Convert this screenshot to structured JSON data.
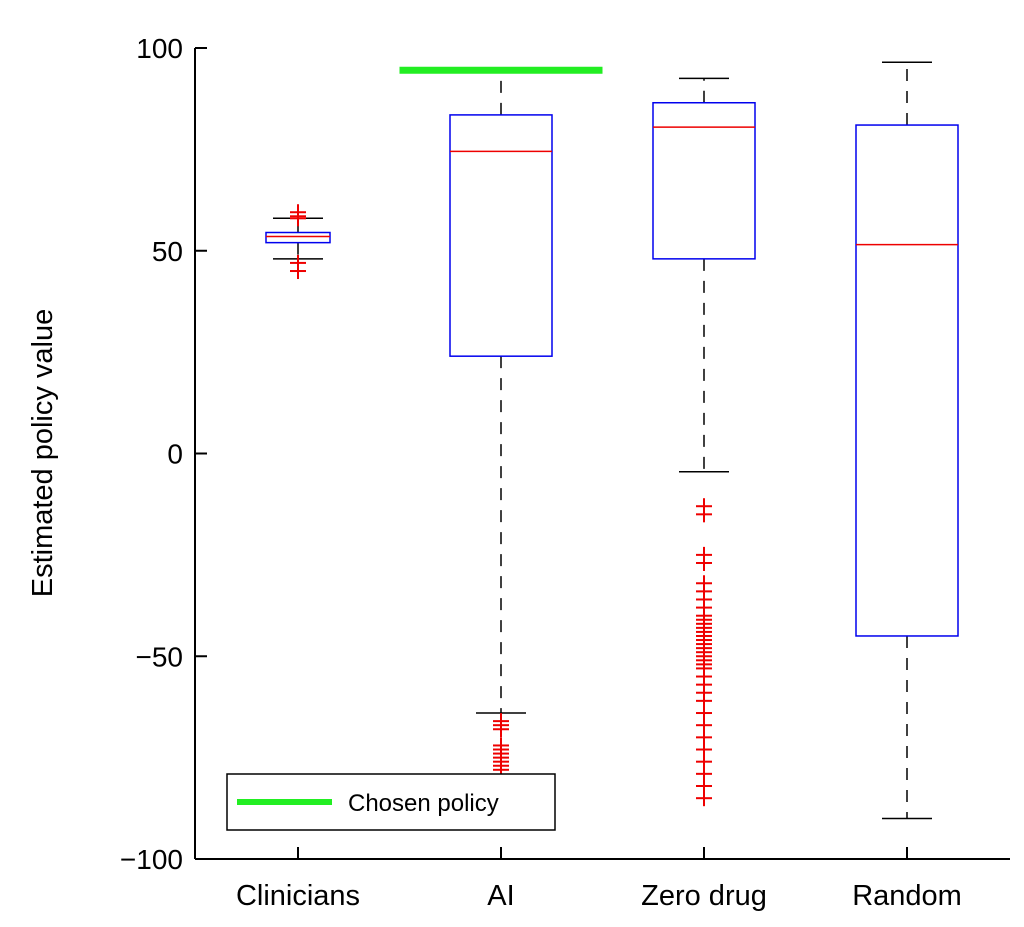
{
  "chart_data": {
    "type": "box",
    "ylabel": "Estimated policy value",
    "ylim": [
      -100,
      100
    ],
    "yticks": [
      {
        "value": 100,
        "label": "100"
      },
      {
        "value": 50,
        "label": "50"
      },
      {
        "value": 0,
        "label": "0"
      },
      {
        "value": -50,
        "label": "−50"
      },
      {
        "value": -100,
        "label": "−100"
      }
    ],
    "categories": [
      "Clinicians",
      "AI",
      "Zero drug",
      "Random"
    ],
    "boxes": [
      {
        "whisker_low": 48,
        "q1": 52,
        "median": 53.5,
        "q3": 54.5,
        "whisker_high": 58,
        "outliers": [
          59.5,
          58.5,
          58,
          47,
          45
        ]
      },
      {
        "whisker_low": -64,
        "q1": 24,
        "median": 74.5,
        "q3": 83.5,
        "whisker_high": 94,
        "outliers": [
          -66,
          -67,
          -68,
          -72,
          -73,
          -74,
          -75,
          -76,
          -77,
          -78
        ]
      },
      {
        "whisker_low": -4.5,
        "q1": 48,
        "median": 80.5,
        "q3": 86.5,
        "whisker_high": 92.5,
        "outliers": [
          -13,
          -15,
          -25,
          -27,
          -32,
          -34,
          -36,
          -38,
          -40,
          -41,
          -42,
          -43,
          -44,
          -45,
          -46,
          -47,
          -48,
          -49,
          -50,
          -51,
          -52,
          -53,
          -55,
          -57,
          -59,
          -61,
          -64,
          -67,
          -70,
          -73,
          -76,
          -79,
          -82,
          -85
        ]
      },
      {
        "whisker_low": -90,
        "q1": -45,
        "median": 51.5,
        "q3": 81,
        "whisker_high": 96.5,
        "outliers": []
      }
    ],
    "chosen_policy": {
      "value": 94.5,
      "category_start": 0.5,
      "category_end": 1.5
    },
    "legend": {
      "label": "Chosen policy",
      "position": "bottom-left"
    },
    "colors": {
      "box": "#0000ee",
      "median": "#ee0000",
      "outlier": "#ee0000",
      "whisker": "#000000",
      "chosen": "#22ee22"
    }
  }
}
